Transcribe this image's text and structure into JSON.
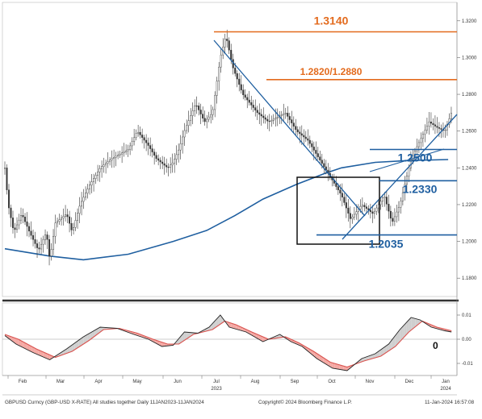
{
  "chart_data": [
    {
      "type": "candlestick",
      "x_axis": {
        "months": [
          "Feb",
          "Mar",
          "Apr",
          "May",
          "Jun",
          "Jul",
          "Aug",
          "Sep",
          "Oct",
          "Nov",
          "Dec",
          "Jan"
        ],
        "years": [
          "2023",
          "2024"
        ]
      },
      "y_axis": {
        "ticks": [
          "1.3200",
          "1.3000",
          "1.2800",
          "1.2600",
          "1.2400",
          "1.2200",
          "1.2000",
          "1.1800"
        ],
        "ylim": [
          1.17,
          1.33
        ]
      },
      "levels": [
        {
          "label": "1.3140",
          "value": 1.314,
          "color": "#e36b1e"
        },
        {
          "label": "1.2820/1.2880",
          "value": 1.288,
          "color": "#e36b1e"
        },
        {
          "label": "1.2500",
          "value": 1.25,
          "color": "#1f5fa0"
        },
        {
          "label": "1.2330",
          "value": 1.233,
          "color": "#1f5fa0"
        },
        {
          "label": "1.2035",
          "value": 1.2035,
          "color": "#1f5fa0"
        }
      ],
      "series": [
        {
          "type": "moving-average",
          "color": "#1f5fa0",
          "points": [
            {
              "t": 0,
              "y": 1.196
            },
            {
              "t": 40,
              "y": 1.192
            },
            {
              "t": 70,
              "y": 1.19
            },
            {
              "t": 110,
              "y": 1.193
            },
            {
              "t": 150,
              "y": 1.2
            },
            {
              "t": 180,
              "y": 1.206
            },
            {
              "t": 205,
              "y": 1.214
            },
            {
              "t": 230,
              "y": 1.223
            },
            {
              "t": 260,
              "y": 1.231
            },
            {
              "t": 285,
              "y": 1.237
            },
            {
              "t": 300,
              "y": 1.24
            },
            {
              "t": 330,
              "y": 1.243
            },
            {
              "t": 360,
              "y": 1.244
            },
            {
              "t": 395,
              "y": 1.2445
            }
          ]
        },
        {
          "type": "close",
          "color": "#333333",
          "points": [
            {
              "t": 0,
              "y": 1.24
            },
            {
              "t": 3,
              "y": 1.22
            },
            {
              "t": 8,
              "y": 1.205
            },
            {
              "t": 15,
              "y": 1.215
            },
            {
              "t": 22,
              "y": 1.205
            },
            {
              "t": 30,
              "y": 1.195
            },
            {
              "t": 37,
              "y": 1.205
            },
            {
              "t": 40,
              "y": 1.19
            },
            {
              "t": 45,
              "y": 1.21
            },
            {
              "t": 55,
              "y": 1.215
            },
            {
              "t": 60,
              "y": 1.205
            },
            {
              "t": 67,
              "y": 1.22
            },
            {
              "t": 75,
              "y": 1.23
            },
            {
              "t": 85,
              "y": 1.24
            },
            {
              "t": 95,
              "y": 1.245
            },
            {
              "t": 110,
              "y": 1.25
            },
            {
              "t": 118,
              "y": 1.26
            },
            {
              "t": 128,
              "y": 1.252
            },
            {
              "t": 135,
              "y": 1.245
            },
            {
              "t": 145,
              "y": 1.24
            },
            {
              "t": 150,
              "y": 1.243
            },
            {
              "t": 155,
              "y": 1.25
            },
            {
              "t": 160,
              "y": 1.26
            },
            {
              "t": 170,
              "y": 1.275
            },
            {
              "t": 178,
              "y": 1.265
            },
            {
              "t": 185,
              "y": 1.27
            },
            {
              "t": 192,
              "y": 1.3
            },
            {
              "t": 197,
              "y": 1.312
            },
            {
              "t": 203,
              "y": 1.295
            },
            {
              "t": 212,
              "y": 1.28
            },
            {
              "t": 225,
              "y": 1.27
            },
            {
              "t": 235,
              "y": 1.265
            },
            {
              "t": 250,
              "y": 1.27
            },
            {
              "t": 260,
              "y": 1.26
            },
            {
              "t": 270,
              "y": 1.255
            },
            {
              "t": 280,
              "y": 1.245
            },
            {
              "t": 290,
              "y": 1.235
            },
            {
              "t": 300,
              "y": 1.225
            },
            {
              "t": 308,
              "y": 1.212
            },
            {
              "t": 318,
              "y": 1.22
            },
            {
              "t": 328,
              "y": 1.215
            },
            {
              "t": 338,
              "y": 1.225
            },
            {
              "t": 345,
              "y": 1.21
            },
            {
              "t": 352,
              "y": 1.22
            },
            {
              "t": 358,
              "y": 1.235
            },
            {
              "t": 362,
              "y": 1.245
            },
            {
              "t": 370,
              "y": 1.255
            },
            {
              "t": 378,
              "y": 1.265
            },
            {
              "t": 385,
              "y": 1.262
            },
            {
              "t": 392,
              "y": 1.26
            },
            {
              "t": 398,
              "y": 1.27
            }
          ]
        }
      ]
    },
    {
      "type": "line",
      "y_axis": {
        "ticks": [
          "0.01",
          "0.00",
          "-0.01"
        ],
        "ylim": [
          -0.015,
          0.015
        ]
      },
      "annotation": "0",
      "series": [
        {
          "type": "fast",
          "color": "#222222",
          "points": [
            {
              "t": 0,
              "y": 0.0015
            },
            {
              "t": 10,
              "y": -0.002
            },
            {
              "t": 25,
              "y": -0.0055
            },
            {
              "t": 40,
              "y": -0.0085
            },
            {
              "t": 55,
              "y": -0.004
            },
            {
              "t": 70,
              "y": 0.001
            },
            {
              "t": 85,
              "y": 0.005
            },
            {
              "t": 100,
              "y": 0.0045
            },
            {
              "t": 115,
              "y": 0.002
            },
            {
              "t": 128,
              "y": 0.0
            },
            {
              "t": 140,
              "y": -0.003
            },
            {
              "t": 150,
              "y": -0.0025
            },
            {
              "t": 160,
              "y": 0.003
            },
            {
              "t": 172,
              "y": 0.0025
            },
            {
              "t": 182,
              "y": 0.005
            },
            {
              "t": 192,
              "y": 0.01
            },
            {
              "t": 200,
              "y": 0.005
            },
            {
              "t": 215,
              "y": 0.003
            },
            {
              "t": 230,
              "y": -0.001
            },
            {
              "t": 245,
              "y": 0.002
            },
            {
              "t": 255,
              "y": -0.001
            },
            {
              "t": 265,
              "y": -0.003
            },
            {
              "t": 278,
              "y": -0.008
            },
            {
              "t": 292,
              "y": -0.012
            },
            {
              "t": 305,
              "y": -0.013
            },
            {
              "t": 318,
              "y": -0.008
            },
            {
              "t": 330,
              "y": -0.006
            },
            {
              "t": 342,
              "y": -0.002
            },
            {
              "t": 352,
              "y": 0.004
            },
            {
              "t": 362,
              "y": 0.009
            },
            {
              "t": 370,
              "y": 0.008
            },
            {
              "t": 380,
              "y": 0.005
            },
            {
              "t": 392,
              "y": 0.0035
            },
            {
              "t": 398,
              "y": 0.003
            }
          ]
        },
        {
          "type": "slow",
          "color": "#d9534f",
          "points": [
            {
              "t": 0,
              "y": 0.002
            },
            {
              "t": 12,
              "y": 0.0
            },
            {
              "t": 28,
              "y": -0.004
            },
            {
              "t": 45,
              "y": -0.0075
            },
            {
              "t": 60,
              "y": -0.005
            },
            {
              "t": 75,
              "y": -0.0005
            },
            {
              "t": 88,
              "y": 0.004
            },
            {
              "t": 102,
              "y": 0.0045
            },
            {
              "t": 118,
              "y": 0.0025
            },
            {
              "t": 132,
              "y": 0.0
            },
            {
              "t": 145,
              "y": -0.002
            },
            {
              "t": 155,
              "y": -0.002
            },
            {
              "t": 168,
              "y": 0.002
            },
            {
              "t": 185,
              "y": 0.004
            },
            {
              "t": 196,
              "y": 0.0075
            },
            {
              "t": 206,
              "y": 0.006
            },
            {
              "t": 220,
              "y": 0.003
            },
            {
              "t": 235,
              "y": 0.0
            },
            {
              "t": 250,
              "y": 0.001
            },
            {
              "t": 262,
              "y": -0.0015
            },
            {
              "t": 275,
              "y": -0.005
            },
            {
              "t": 290,
              "y": -0.0095
            },
            {
              "t": 305,
              "y": -0.0115
            },
            {
              "t": 320,
              "y": -0.009
            },
            {
              "t": 335,
              "y": -0.007
            },
            {
              "t": 348,
              "y": -0.003
            },
            {
              "t": 360,
              "y": 0.003
            },
            {
              "t": 372,
              "y": 0.0075
            },
            {
              "t": 385,
              "y": 0.005
            },
            {
              "t": 398,
              "y": 0.0035
            }
          ]
        }
      ]
    }
  ],
  "footer": {
    "left": "GBPUSD Curncy (GBP-USD X-RATE) All studies together  Daily 11JAN2023-11JAN2024",
    "center": "Copyright© 2024 Bloomberg Finance L.P.",
    "right": "11-Jan-2024 16:57:08"
  }
}
